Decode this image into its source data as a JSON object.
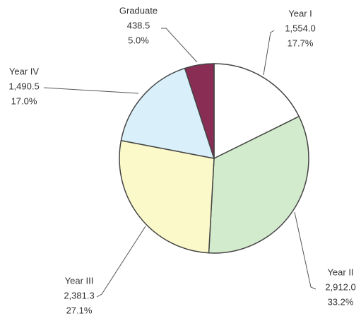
{
  "chart_data": {
    "type": "pie",
    "categories": [
      "Year I",
      "Year II",
      "Year III",
      "Year IV",
      "Graduate"
    ],
    "values": [
      1554.0,
      2912.0,
      2381.3,
      1490.5,
      438.5
    ],
    "value_labels": [
      "1,554.0",
      "2,912.0",
      "2,381.3",
      "1,490.5",
      "438.5"
    ],
    "percent_labels": [
      "17.7%",
      "33.2%",
      "27.1%",
      "17.0%",
      "5.0%"
    ],
    "colors": [
      "#ffffff",
      "#d3ebcd",
      "#fbf8c9",
      "#d9eff9",
      "#8a2d55"
    ]
  }
}
